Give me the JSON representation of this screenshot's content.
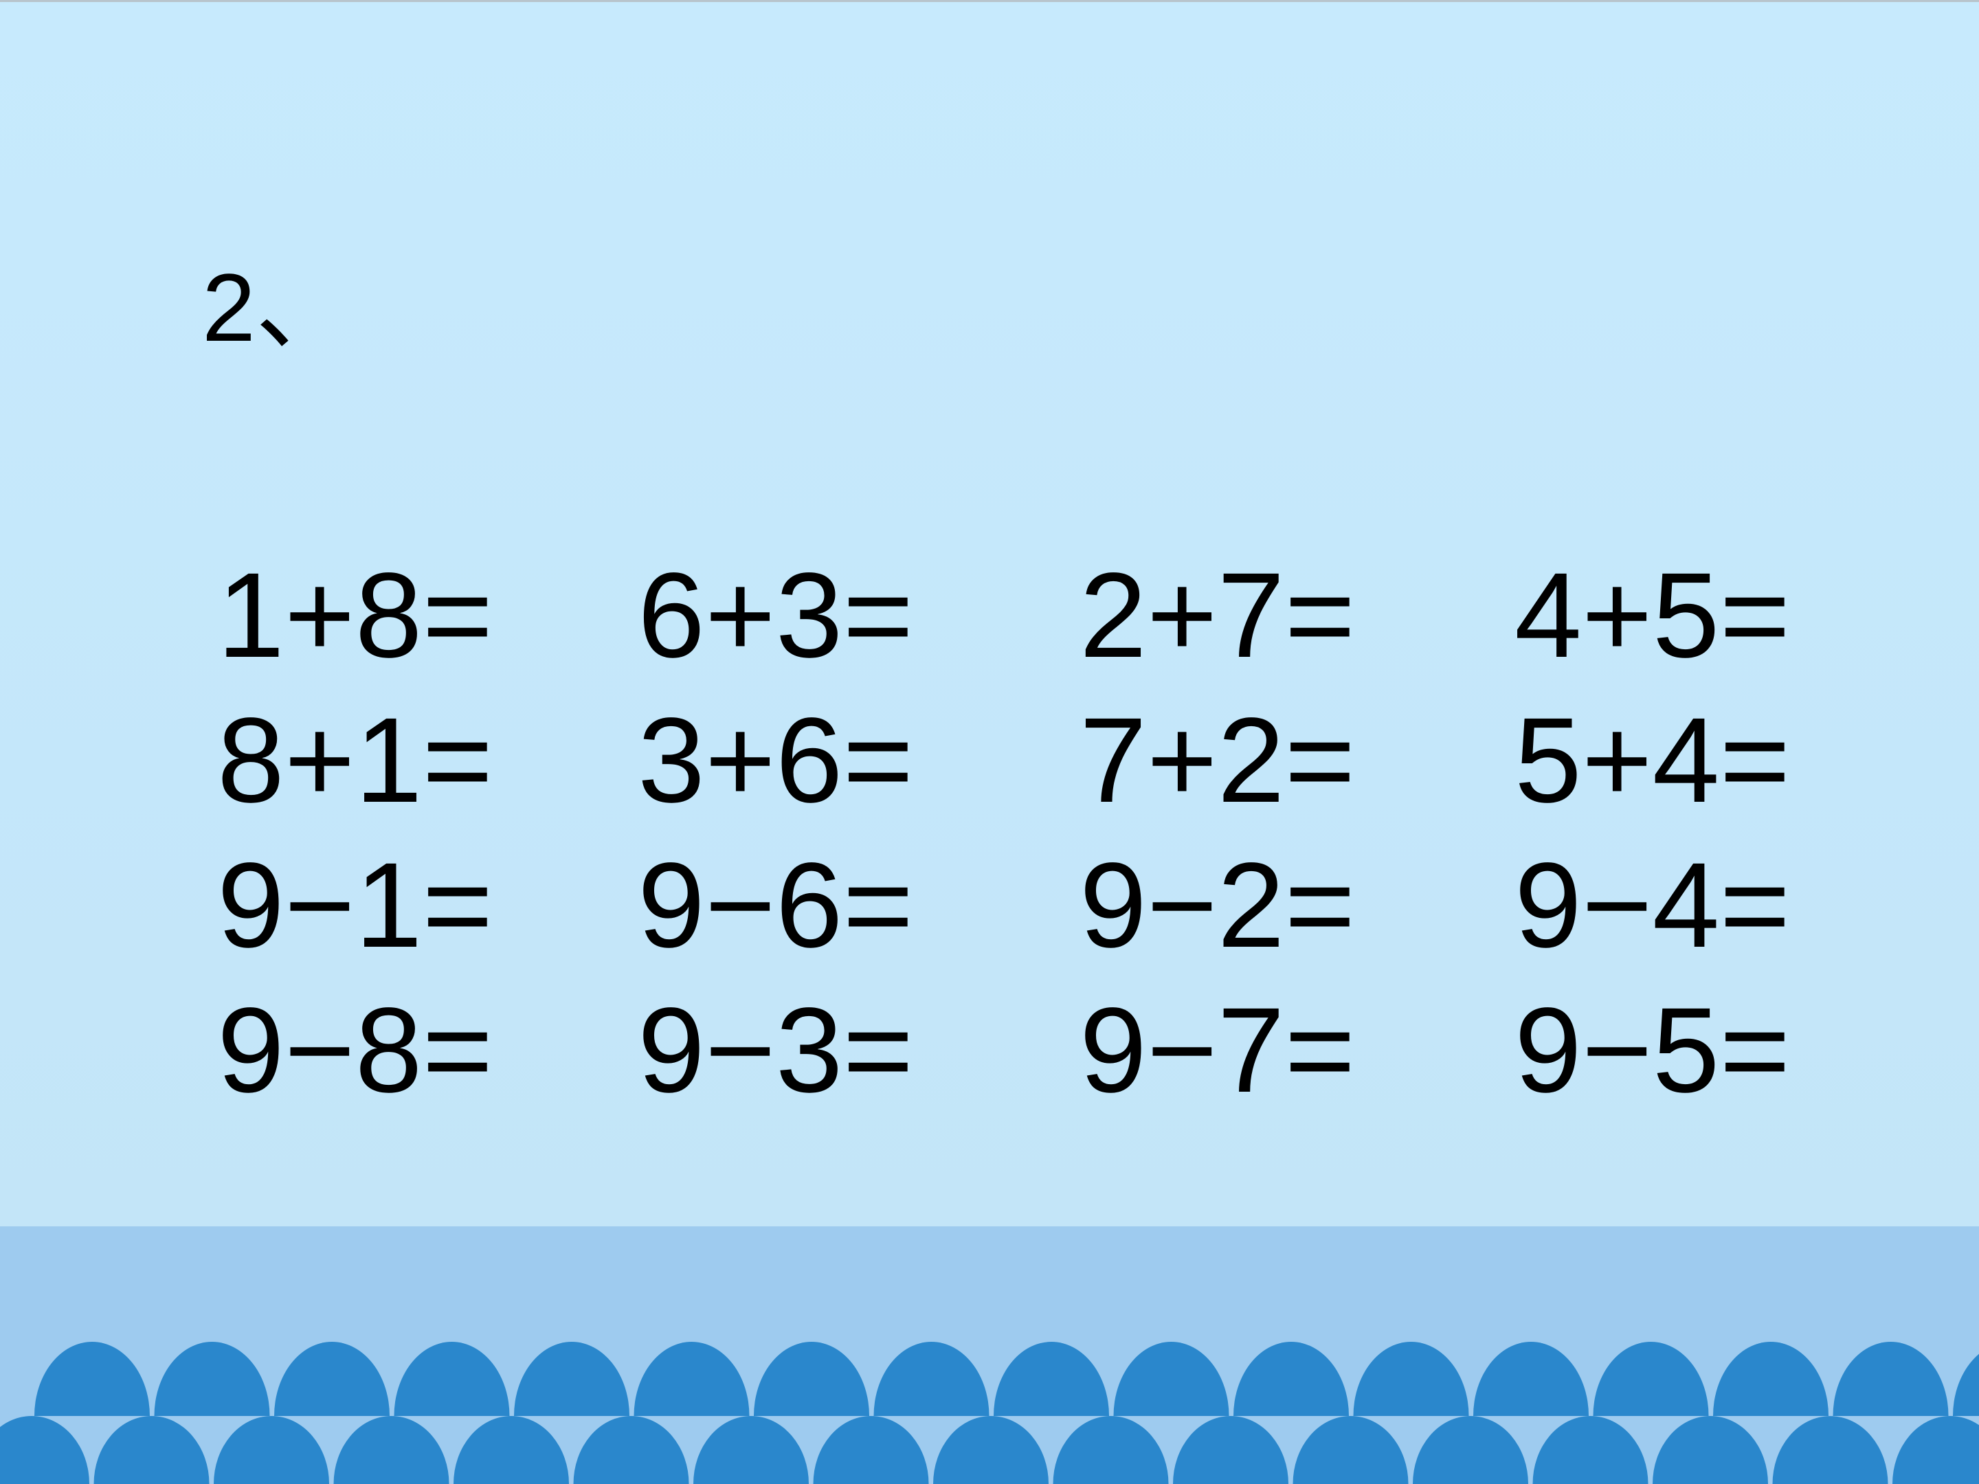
{
  "slide": {
    "heading": "2、",
    "columns": [
      [
        "1+8=",
        "8+1=",
        "9−1=",
        "9−8="
      ],
      [
        "6+3=",
        "3+6=",
        "9−6=",
        "9−3="
      ],
      [
        "2+7=",
        "7+2=",
        "9−2=",
        "9−7="
      ],
      [
        "4+5=",
        "5+4=",
        "9−4=",
        "9−5="
      ]
    ]
  },
  "colors": {
    "background": "#c6e9fb",
    "band": "#9ecbef",
    "scallop": "#2a87cc"
  }
}
